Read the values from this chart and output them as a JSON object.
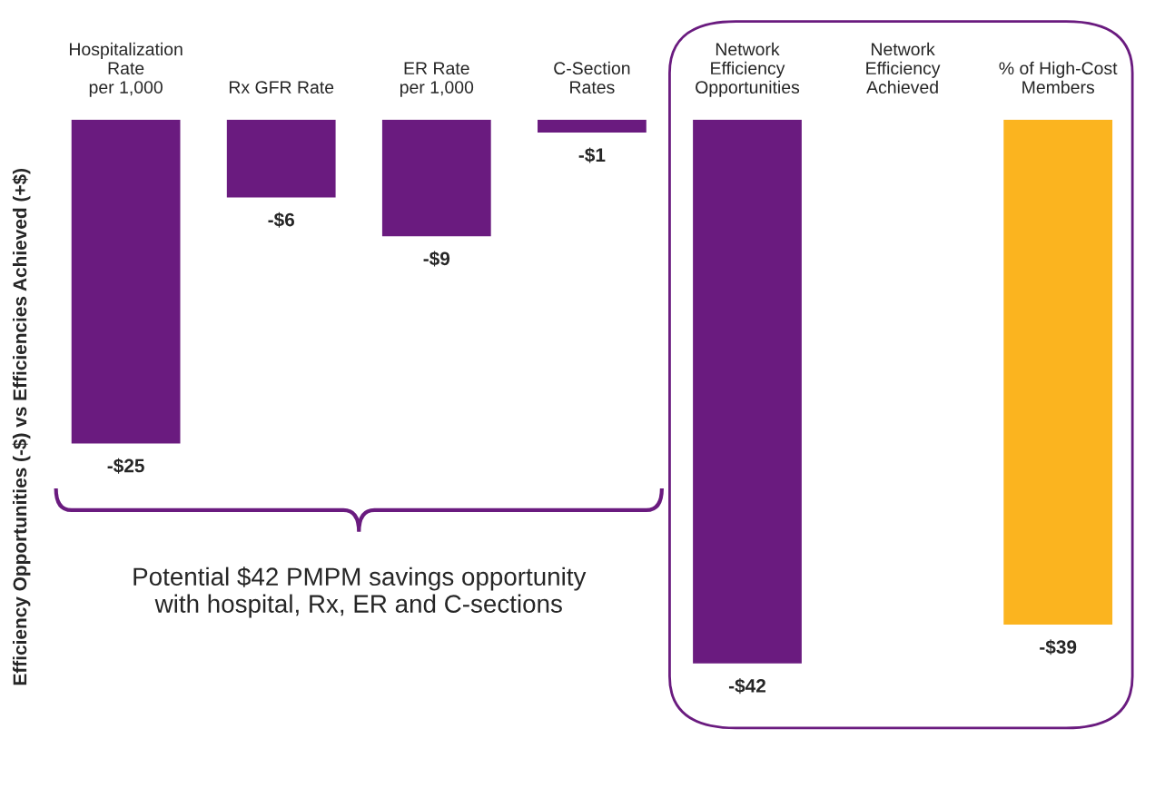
{
  "chart_data": {
    "type": "bar",
    "ylabel": "Efficiency Opportunities (-$) vs Efficiencies Achieved (+$)",
    "categories": [
      "Hospitalization\nRate\nper 1,000",
      "Rx GFR Rate",
      "ER Rate\nper 1,000",
      "C-Section\nRates",
      "Network\nEfficiency\nOpportunities",
      "Network\nEfficiency\nAchieved",
      "% of High-Cost\nMembers"
    ],
    "values": [
      -25,
      -6,
      -9,
      -1,
      -42,
      null,
      -39
    ],
    "colors": [
      "#6a1b7f",
      "#6a1b7f",
      "#6a1b7f",
      "#6a1b7f",
      "#6a1b7f",
      "#6a1b7f",
      "#fbb41f"
    ],
    "value_labels": [
      "-$25",
      "-$6",
      "-$9",
      "-$1",
      "-$42",
      null,
      "-$39"
    ],
    "annotations": [
      "Potential $42 PMPM savings opportunity\nwith hospital, Rx, ER and C-sections"
    ],
    "grid": false,
    "legend": false
  }
}
